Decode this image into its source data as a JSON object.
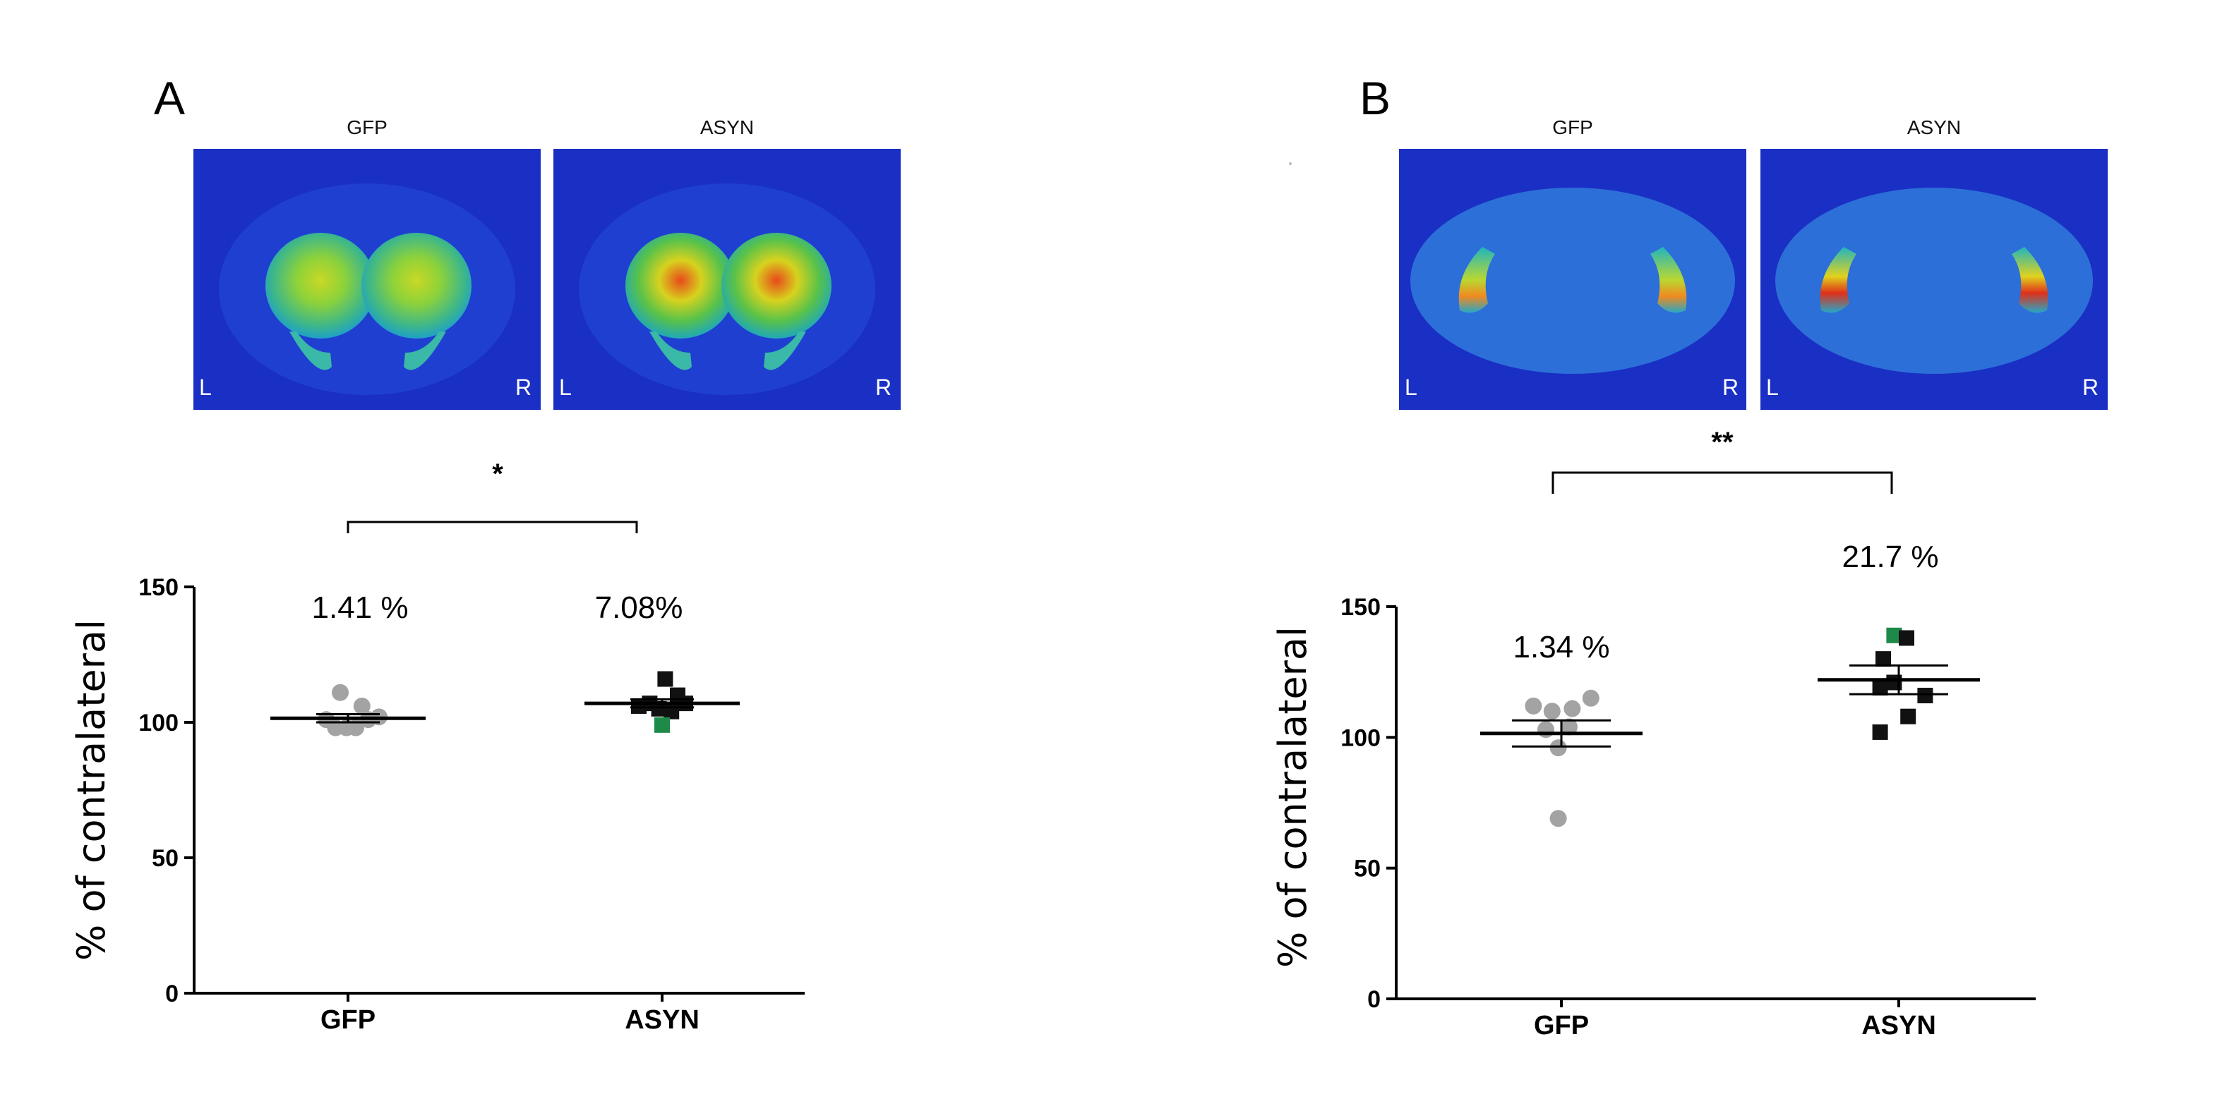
{
  "chart_data": [
    {
      "type": "scatter",
      "panel": "A",
      "image_titles": [
        "GFP",
        "ASYN"
      ],
      "image_corner_labels": [
        "L",
        "R"
      ],
      "significance": "*",
      "ylabel": "% of contralateral",
      "xlabel": "",
      "ylim": [
        0,
        150
      ],
      "yticks": [
        0,
        50,
        100,
        150
      ],
      "categories": [
        "GFP",
        "ASYN"
      ],
      "annotations": [
        "1.41 %",
        "7.08%"
      ],
      "series": [
        {
          "name": "GFP",
          "marker": "circle",
          "color": "#a3a3a3",
          "mean": 101.5,
          "sem": 1.5,
          "points": [
            {
              "x": -0.1,
              "y": 111,
              "color": "#a3a3a3"
            },
            {
              "x": -0.28,
              "y": 101,
              "color": "#a3a3a3"
            },
            {
              "x": -0.16,
              "y": 98,
              "color": "#a3a3a3"
            },
            {
              "x": -0.02,
              "y": 98,
              "color": "#a3a3a3"
            },
            {
              "x": 0.1,
              "y": 98,
              "color": "#a3a3a3"
            },
            {
              "x": 0.18,
              "y": 106,
              "color": "#a3a3a3"
            },
            {
              "x": 0.26,
              "y": 101,
              "color": "#a3a3a3"
            },
            {
              "x": 0.4,
              "y": 102,
              "color": "#a3a3a3"
            }
          ]
        },
        {
          "name": "ASYN",
          "marker": "square",
          "color": "#111111",
          "mean": 107,
          "sem": 1.5,
          "points": [
            {
              "x": 0.04,
              "y": 116,
              "color": "#111111"
            },
            {
              "x": 0.2,
              "y": 110,
              "color": "#111111"
            },
            {
              "x": -0.3,
              "y": 106,
              "color": "#111111"
            },
            {
              "x": -0.16,
              "y": 107,
              "color": "#111111"
            },
            {
              "x": 0.3,
              "y": 107,
              "color": "#111111"
            },
            {
              "x": -0.04,
              "y": 105,
              "color": "#111111"
            },
            {
              "x": 0.12,
              "y": 104,
              "color": "#111111"
            },
            {
              "x": 0.0,
              "y": 99,
              "color": "#1e8a4a"
            }
          ]
        }
      ]
    },
    {
      "type": "scatter",
      "panel": "B",
      "image_titles": [
        "GFP",
        "ASYN"
      ],
      "image_corner_labels": [
        "L",
        "R"
      ],
      "significance": "**",
      "ylabel": "% of contralateral",
      "xlabel": "",
      "ylim": [
        0,
        150
      ],
      "yticks": [
        0,
        50,
        100,
        150
      ],
      "categories": [
        "GFP",
        "ASYN"
      ],
      "annotations": [
        "1.34 %",
        "21.7 %"
      ],
      "series": [
        {
          "name": "GFP",
          "marker": "circle",
          "color": "#a3a3a3",
          "mean": 101.5,
          "sem": 5,
          "points": [
            {
              "x": -0.36,
              "y": 112,
              "color": "#a3a3a3"
            },
            {
              "x": -0.12,
              "y": 110,
              "color": "#a3a3a3"
            },
            {
              "x": 0.14,
              "y": 111,
              "color": "#a3a3a3"
            },
            {
              "x": 0.38,
              "y": 115,
              "color": "#a3a3a3"
            },
            {
              "x": -0.2,
              "y": 103,
              "color": "#a3a3a3"
            },
            {
              "x": 0.1,
              "y": 104,
              "color": "#a3a3a3"
            },
            {
              "x": -0.04,
              "y": 96,
              "color": "#a3a3a3"
            },
            {
              "x": -0.04,
              "y": 69,
              "color": "#a3a3a3"
            }
          ]
        },
        {
          "name": "ASYN",
          "marker": "square",
          "color": "#111111",
          "mean": 122,
          "sem": 5.5,
          "points": [
            {
              "x": -0.06,
              "y": 139,
              "color": "#1e8a4a"
            },
            {
              "x": 0.1,
              "y": 138,
              "color": "#111111"
            },
            {
              "x": -0.2,
              "y": 130,
              "color": "#111111"
            },
            {
              "x": -0.24,
              "y": 119,
              "color": "#111111"
            },
            {
              "x": -0.06,
              "y": 121,
              "color": "#111111"
            },
            {
              "x": 0.34,
              "y": 116,
              "color": "#111111"
            },
            {
              "x": 0.12,
              "y": 108,
              "color": "#111111"
            },
            {
              "x": -0.24,
              "y": 102,
              "color": "#111111"
            }
          ]
        }
      ]
    }
  ]
}
